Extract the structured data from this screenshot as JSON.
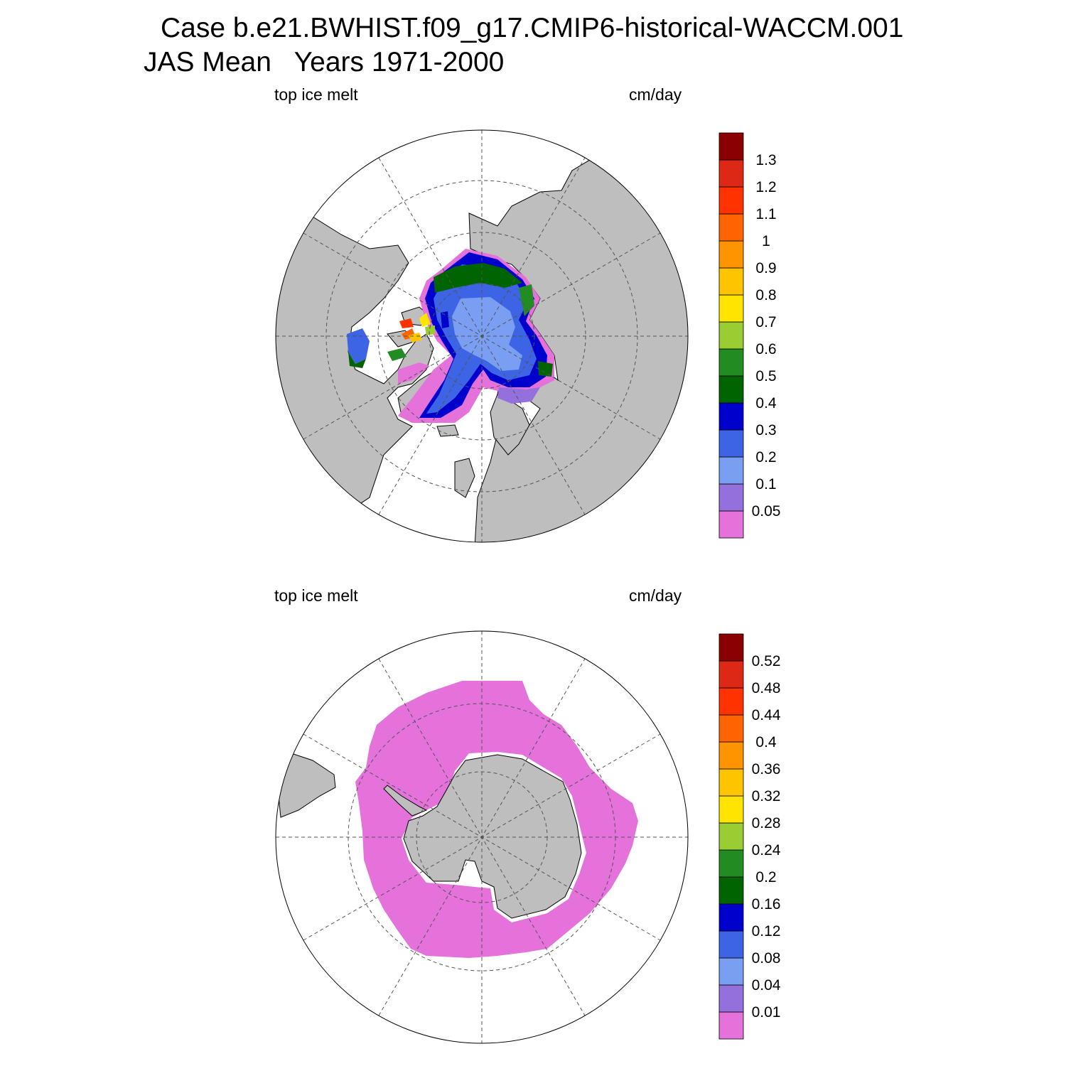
{
  "header": {
    "title_line1": "Case b.e21.BWHIST.f09_g17.CMIP6-historical-WACCM.001",
    "title_line2": "JAS Mean   Years 1971-2000"
  },
  "colors": {
    "land": "#bebebe",
    "outline": "#000000",
    "grid": "#555555",
    "palette": [
      "#e472da",
      "#9370db",
      "#7a9ef2",
      "#3c64e4",
      "#0000cd",
      "#006400",
      "#228b22",
      "#9acd32",
      "#ffe400",
      "#ffc400",
      "#ff9400",
      "#ff6400",
      "#ff3200",
      "#dc2814",
      "#8b0000"
    ]
  },
  "panels": [
    {
      "name": "northern-hemisphere",
      "left_label": "top ice melt",
      "right_label": "cm/day",
      "colorbar_labels": [
        "0.05",
        "0.1",
        "0.2",
        "0.3",
        "0.4",
        "0.5",
        "0.6",
        "0.7",
        "0.8",
        "0.9",
        "1",
        "1.1",
        "1.2",
        "1.3"
      ]
    },
    {
      "name": "southern-hemisphere",
      "left_label": "top ice melt",
      "right_label": "cm/day",
      "colorbar_labels": [
        "0.01",
        "0.04",
        "0.08",
        "0.12",
        "0.16",
        "0.2",
        "0.24",
        "0.28",
        "0.32",
        "0.36",
        "0.4",
        "0.44",
        "0.48",
        "0.52"
      ]
    }
  ]
}
